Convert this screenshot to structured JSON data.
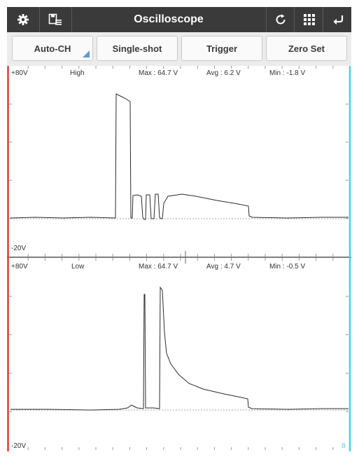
{
  "app": {
    "title": "Oscilloscope"
  },
  "toolbar": {
    "left_icons": [
      "gear-icon",
      "save-list-icon"
    ],
    "right_icons": [
      "refresh-icon",
      "grid-icon",
      "back-arrow-icon"
    ]
  },
  "controls": {
    "auto_ch": "Auto-CH",
    "single_shot": "Single-shot",
    "trigger": "Trigger",
    "zero_set": "Zero Set"
  },
  "channels": [
    {
      "name": "High",
      "max": "Max : 64.7 V",
      "avg": "Avg : 6.2 V",
      "min": "Min : -1.8 V",
      "top_label": "+80V",
      "bottom_label": "-20V"
    },
    {
      "name": "Low",
      "max": "Max : 64.7 V",
      "avg": "Avg : 4.7 V",
      "min": "Min : -0.5 V",
      "top_label": "+80V",
      "bottom_label": "-20V"
    }
  ],
  "corner_marker": "8",
  "colors": {
    "left_marker": "#e53935",
    "right_marker": "#4dd0e1",
    "trace": "#2b2b2b",
    "toolbar": "#3a3a3a"
  }
}
